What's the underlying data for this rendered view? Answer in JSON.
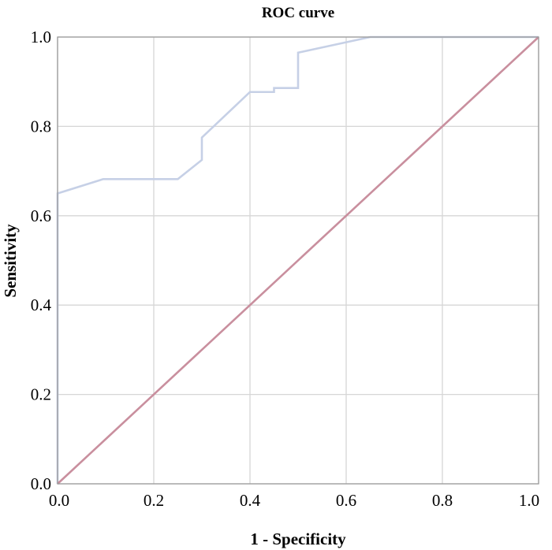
{
  "chart_data": {
    "type": "line",
    "title": "ROC curve",
    "xlabel": "1 - Specificity",
    "ylabel": "Sensitivity",
    "xlim": [
      0.0,
      1.0
    ],
    "ylim": [
      0.0,
      1.0
    ],
    "x_ticks": [
      "0.0",
      "0.2",
      "0.4",
      "0.6",
      "0.8",
      "1.0"
    ],
    "y_ticks": [
      "0.0",
      "0.2",
      "0.4",
      "0.6",
      "0.8",
      "1.0"
    ],
    "grid": true,
    "series": [
      {
        "color": "#c6d0e6",
        "x": [
          0.0,
          0.0,
          0.095,
          0.25,
          0.3,
          0.3,
          0.4,
          0.45,
          0.45,
          0.5,
          0.5,
          0.65,
          1.0
        ],
        "y": [
          0.0,
          0.65,
          0.682,
          0.682,
          0.725,
          0.775,
          0.877,
          0.877,
          0.886,
          0.886,
          0.965,
          1.0,
          1.0
        ]
      },
      {
        "color": "#c98f9e",
        "x": [
          0.0,
          1.0
        ],
        "y": [
          0.0,
          1.0
        ]
      }
    ]
  }
}
